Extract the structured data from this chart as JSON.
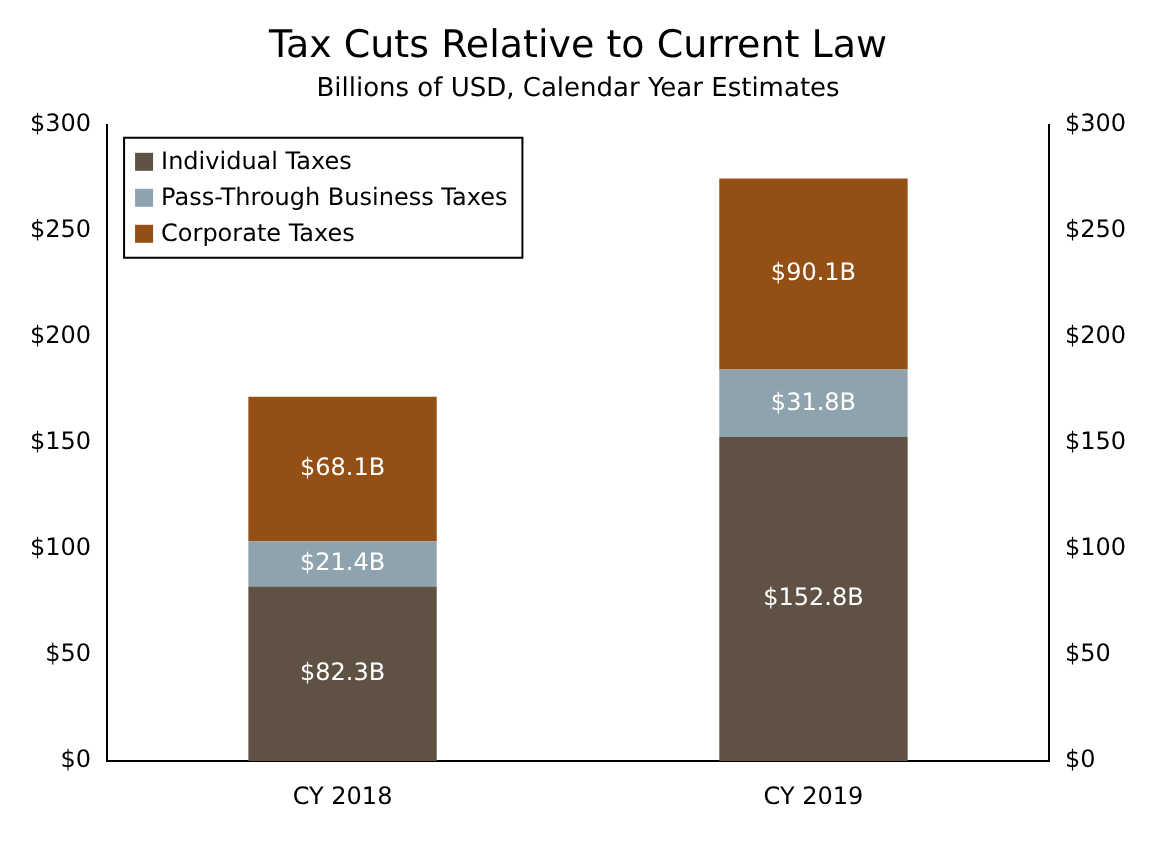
{
  "chart_data": {
    "type": "bar",
    "title": "Tax Cuts Relative to Current Law",
    "subtitle": "Billions of USD, Calendar Year Estimates",
    "categories": [
      "CY 2018",
      "CY 2019"
    ],
    "stacked": true,
    "series": [
      {
        "name": "Individual Taxes",
        "color": "#5f5244",
        "values": [
          82.3,
          152.8
        ],
        "value_labels": [
          "$82.3B",
          "$152.8B"
        ]
      },
      {
        "name": "Pass-Through Business Taxes",
        "color": "#8fa3ae",
        "values": [
          21.4,
          31.8
        ],
        "value_labels": [
          "$21.4B",
          "$31.8B"
        ]
      },
      {
        "name": "Corporate Taxes",
        "color": "#944f14",
        "values": [
          68.1,
          90.1
        ],
        "value_labels": [
          "$68.1B",
          "$90.1B"
        ]
      }
    ],
    "ylim": [
      0,
      300
    ],
    "yticks": [
      {
        "value": 0,
        "label": "$0"
      },
      {
        "value": 50,
        "label": "$50"
      },
      {
        "value": 100,
        "label": "$100"
      },
      {
        "value": 150,
        "label": "$150"
      },
      {
        "value": 200,
        "label": "$200"
      },
      {
        "value": 250,
        "label": "$250"
      },
      {
        "value": 300,
        "label": "$300"
      }
    ],
    "y2lim": [
      0,
      300
    ],
    "y2ticks": [
      {
        "value": 0,
        "label": "$0"
      },
      {
        "value": 50,
        "label": "$50"
      },
      {
        "value": 100,
        "label": "$100"
      },
      {
        "value": 150,
        "label": "$150"
      },
      {
        "value": 200,
        "label": "$200"
      },
      {
        "value": 250,
        "label": "$250"
      },
      {
        "value": 300,
        "label": "$300"
      }
    ],
    "legend": "top left"
  }
}
